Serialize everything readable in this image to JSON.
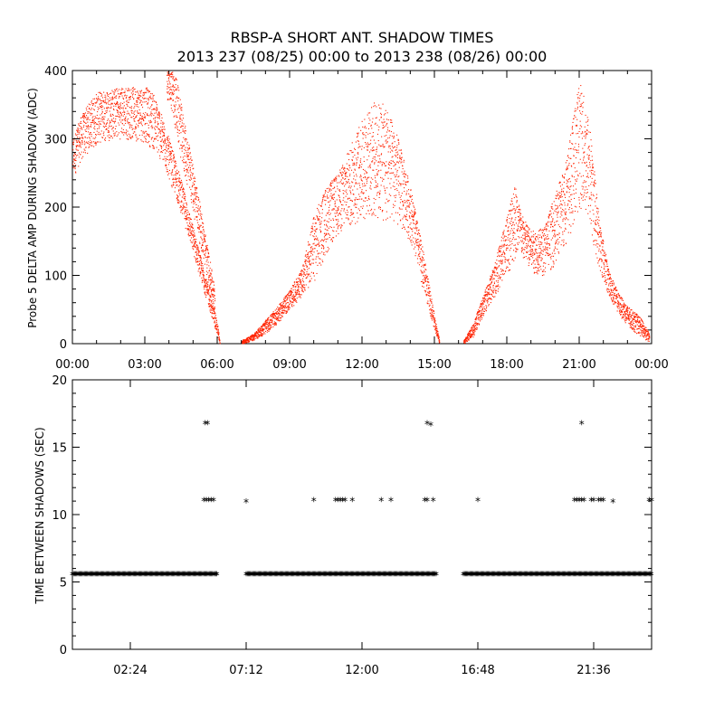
{
  "chart_data": [
    {
      "type": "scatter",
      "title": "RBSP-A SHORT ANT. SHADOW TIMES",
      "subtitle": "2013 237 (08/25) 00:00 to 2013 238 (08/26) 00:00",
      "xlabel": "",
      "ylabel": "Probe 5 DELTA AMP DURING SHADOW (ADC)",
      "xlim": [
        "00:00",
        "24:00"
      ],
      "ylim": [
        0,
        400
      ],
      "x_ticks": [
        "00:00",
        "03:00",
        "06:00",
        "09:00",
        "12:00",
        "15:00",
        "18:00",
        "21:00",
        "00:00"
      ],
      "y_ticks": [
        "0",
        "100",
        "200",
        "300",
        "400"
      ],
      "grid": false,
      "series": [
        {
          "color": "#ff2200",
          "envelope_hours": [
            0.0,
            0.3,
            0.7,
            1.0,
            1.5,
            2.0,
            2.5,
            3.0,
            3.3,
            3.6,
            4.0,
            4.5,
            5.0,
            5.5,
            6.0,
            6.1
          ],
          "envelope_low": [
            240,
            265,
            283,
            292,
            298,
            300,
            298,
            295,
            285,
            270,
            240,
            190,
            130,
            70,
            10,
            0
          ],
          "envelope_high": [
            300,
            330,
            355,
            368,
            373,
            377,
            376,
            377,
            370,
            345,
            300,
            240,
            170,
            100,
            30,
            2
          ]
        },
        {
          "color": "#ff2200",
          "envelope_hours": [
            3.9,
            4.1,
            4.3,
            4.6,
            5.0,
            5.3,
            5.6,
            5.9
          ],
          "envelope_low": [
            360,
            340,
            300,
            250,
            190,
            140,
            90,
            40
          ],
          "envelope_high": [
            400,
            400,
            390,
            330,
            260,
            200,
            140,
            80
          ]
        },
        {
          "color": "#ff2200",
          "envelope_hours": [
            7.0,
            7.5,
            8.0,
            8.5,
            9.0,
            9.5,
            10.0,
            10.5,
            11.0,
            11.5,
            12.0,
            12.5,
            13.0,
            13.5,
            14.0,
            14.5,
            15.0,
            15.2
          ],
          "envelope_low": [
            0,
            5,
            15,
            30,
            50,
            70,
            90,
            130,
            160,
            170,
            180,
            180,
            175,
            170,
            150,
            80,
            20,
            0
          ],
          "envelope_high": [
            5,
            15,
            35,
            55,
            80,
            110,
            190,
            230,
            250,
            290,
            330,
            355,
            350,
            300,
            230,
            140,
            40,
            5
          ]
        },
        {
          "color": "#ff2200",
          "envelope_hours": [
            16.2,
            16.6,
            17.0,
            17.5,
            18.0,
            18.3,
            18.6,
            19.0,
            19.5,
            20.0,
            20.5,
            21.0,
            21.4,
            21.8,
            22.2,
            22.6,
            23.0,
            23.5,
            23.9
          ],
          "envelope_low": [
            0,
            10,
            40,
            70,
            100,
            120,
            125,
            105,
            100,
            115,
            150,
            200,
            170,
            110,
            70,
            45,
            25,
            12,
            2
          ],
          "envelope_high": [
            5,
            30,
            70,
            120,
            190,
            240,
            190,
            165,
            170,
            220,
            280,
            390,
            330,
            190,
            110,
            75,
            55,
            40,
            15
          ]
        }
      ]
    },
    {
      "type": "scatter",
      "title": "",
      "xlabel": "",
      "ylabel": "TIME BETWEEN SHADOWS (SEC)",
      "xlim": [
        "00:00",
        "24:00"
      ],
      "ylim": [
        0,
        20
      ],
      "x_ticks": [
        "02:24",
        "07:12",
        "12:00",
        "16:48",
        "21:36"
      ],
      "y_ticks": [
        "0",
        "5",
        "10",
        "15",
        "20"
      ],
      "grid": false,
      "marker": "*",
      "series": [
        {
          "color": "#000000",
          "baseline_value": 5.5,
          "baseline_coverage_hours": [
            [
              0.0,
              6.0
            ],
            [
              7.2,
              15.1
            ],
            [
              16.2,
              24.0
            ]
          ],
          "points": [
            [
              5.5,
              16.7
            ],
            [
              5.6,
              16.7
            ],
            [
              5.45,
              11.0
            ],
            [
              5.55,
              11.0
            ],
            [
              5.65,
              11.0
            ],
            [
              5.75,
              11.0
            ],
            [
              5.85,
              11.0
            ],
            [
              7.2,
              10.9
            ],
            [
              10.0,
              11.0
            ],
            [
              10.9,
              11.0
            ],
            [
              11.0,
              11.0
            ],
            [
              11.1,
              11.0
            ],
            [
              11.2,
              11.0
            ],
            [
              11.3,
              11.0
            ],
            [
              11.6,
              11.0
            ],
            [
              12.8,
              11.0
            ],
            [
              13.2,
              11.0
            ],
            [
              14.6,
              11.0
            ],
            [
              14.7,
              11.0
            ],
            [
              14.95,
              11.0
            ],
            [
              14.7,
              16.7
            ],
            [
              14.85,
              16.6
            ],
            [
              16.8,
              11.0
            ],
            [
              20.8,
              11.0
            ],
            [
              20.9,
              11.0
            ],
            [
              21.0,
              11.0
            ],
            [
              21.1,
              11.0
            ],
            [
              21.2,
              11.0
            ],
            [
              21.5,
              11.0
            ],
            [
              21.6,
              11.0
            ],
            [
              21.8,
              11.0
            ],
            [
              21.9,
              11.0
            ],
            [
              22.0,
              11.0
            ],
            [
              22.4,
              10.9
            ],
            [
              21.1,
              16.7
            ],
            [
              23.9,
              11.0
            ],
            [
              24.0,
              11.0
            ]
          ]
        }
      ]
    }
  ]
}
